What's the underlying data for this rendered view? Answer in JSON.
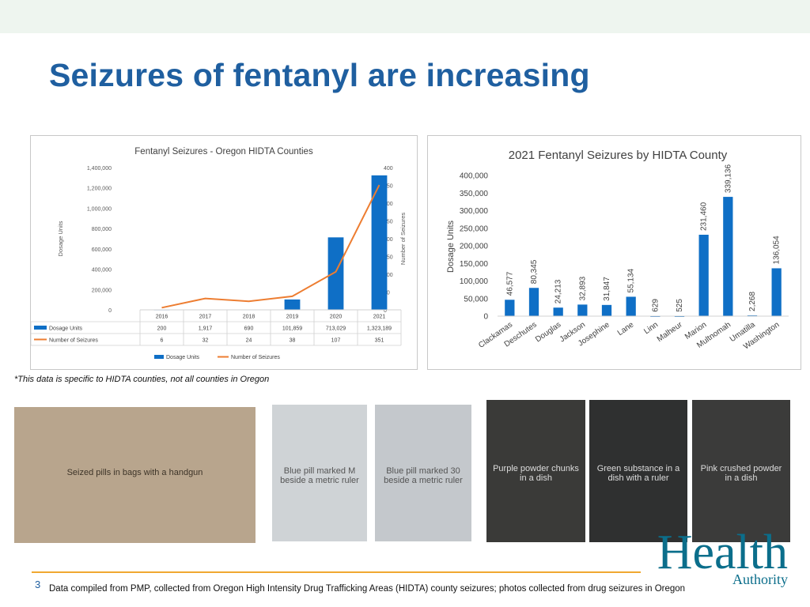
{
  "slide": {
    "title": "Seizures of fentanyl are increasing",
    "caveat": "*This data is specific to HIDTA counties, not all counties in Oregon",
    "page_number": "3",
    "footer": "Data compiled from PMP, collected from Oregon High Intensity Drug Trafficking Areas (HIDTA) county seizures; photos collected from drug seizures in Oregon",
    "logo": {
      "main": "Health",
      "sub": "Authority"
    }
  },
  "photos": [
    {
      "alt": "Seized pills in bags with a handgun"
    },
    {
      "alt": "Blue pill marked M beside a metric ruler"
    },
    {
      "alt": "Blue pill marked 30 beside a metric ruler"
    },
    {
      "alt": "Purple powder chunks in a dish"
    },
    {
      "alt": "Green substance in a dish with a ruler"
    },
    {
      "alt": "Pink crushed powder in a dish"
    }
  ],
  "colors": {
    "title": "#1f5fa0",
    "bar": "#0f6fc6",
    "line": "#ed7d31",
    "rule": "#f0a830"
  },
  "chart_data": [
    {
      "type": "bar",
      "title": "Fentanyl Seizures - Oregon HIDTA Counties",
      "categories": [
        "2016",
        "2017",
        "2018",
        "2019",
        "2020",
        "2021"
      ],
      "series": [
        {
          "name": "Dosage Units",
          "type": "bar",
          "axis": "left",
          "values": [
            200,
            1917,
            690,
            101859,
            713029,
            1323189
          ],
          "labels": [
            "200",
            "1,917",
            "690",
            "101,859",
            "713,029",
            "1,323,189"
          ]
        },
        {
          "name": "Number of Seizures",
          "type": "line",
          "axis": "right",
          "values": [
            6,
            32,
            24,
            38,
            107,
            351
          ],
          "labels": [
            "6",
            "32",
            "24",
            "38",
            "107",
            "351"
          ]
        }
      ],
      "ylabel": "Dosage Units",
      "y2label": "Number  of Seizures",
      "ylim": [
        0,
        1400000
      ],
      "y2lim": [
        0,
        400
      ],
      "yticks": [
        "0",
        "200,000",
        "400,000",
        "600,000",
        "800,000",
        "1,000,000",
        "1,200,000",
        "1,400,000"
      ],
      "y2ticks": [
        "0",
        "50",
        "100",
        "150",
        "200",
        "250",
        "300",
        "350",
        "400"
      ],
      "grid": false,
      "legend": "bottom",
      "data_table": true
    },
    {
      "type": "bar",
      "title": "2021 Fentanyl Seizures by HIDTA County",
      "categories": [
        "Clackamas",
        "Deschutes",
        "Douglas",
        "Jackson",
        "Josephine",
        "Lane",
        "Linn",
        "Malheur",
        "Marion",
        "Multnomah",
        "Umatilla",
        "Washington"
      ],
      "values": [
        46577,
        80345,
        24213,
        32893,
        31847,
        55134,
        629,
        525,
        231460,
        339136,
        2268,
        136054
      ],
      "value_labels": [
        "46,577",
        "80,345",
        "24,213",
        "32,893",
        "31,847",
        "55,134",
        "629",
        "525",
        "231,460",
        "339,136",
        "2,268",
        "136,054"
      ],
      "ylabel": "Dosage Units",
      "ylim": [
        0,
        400000
      ],
      "yticks": [
        "0",
        "50,000",
        "100,000",
        "150,000",
        "200,000",
        "250,000",
        "300,000",
        "350,000",
        "400,000"
      ],
      "grid": false,
      "legend": "none"
    }
  ]
}
